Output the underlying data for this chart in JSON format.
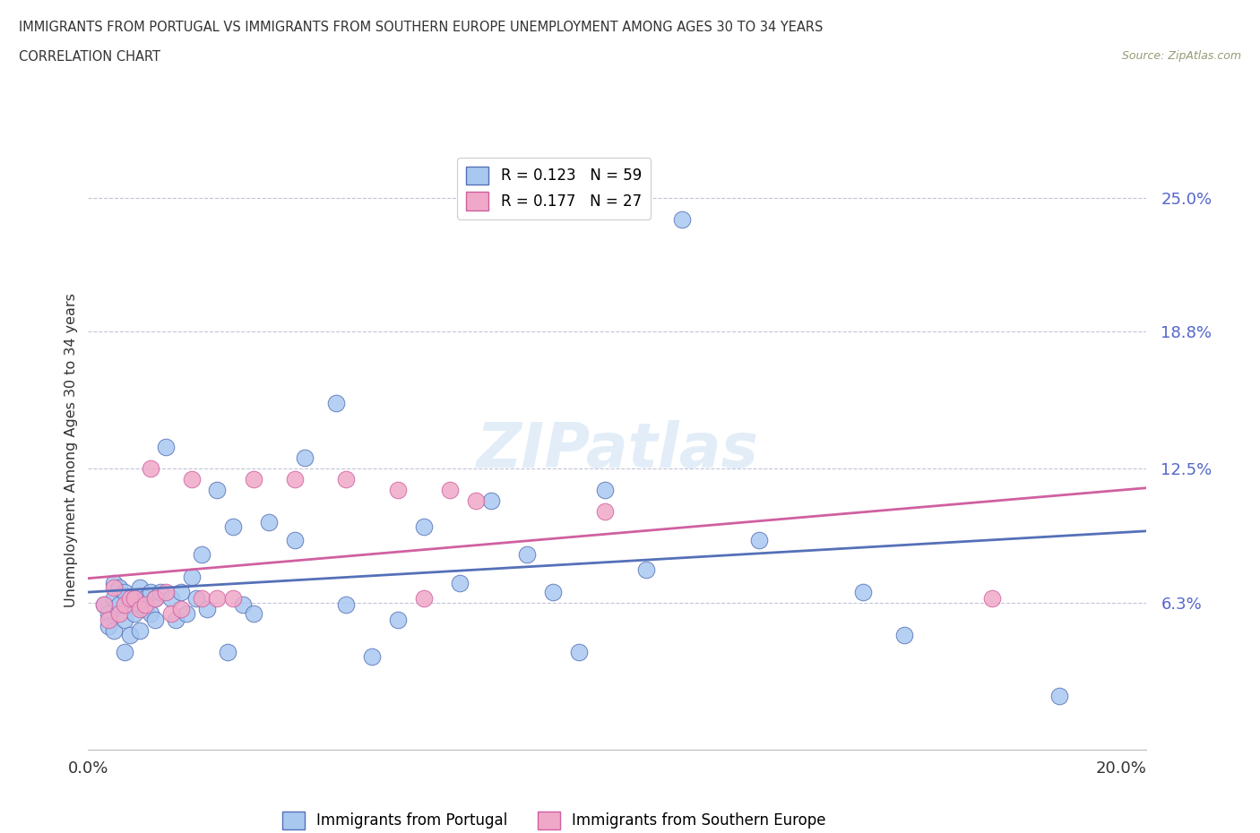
{
  "title_line1": "IMMIGRANTS FROM PORTUGAL VS IMMIGRANTS FROM SOUTHERN EUROPE UNEMPLOYMENT AMONG AGES 30 TO 34 YEARS",
  "title_line2": "CORRELATION CHART",
  "source": "Source: ZipAtlas.com",
  "ylabel": "Unemployment Among Ages 30 to 34 years",
  "xlim": [
    0.0,
    0.205
  ],
  "ylim": [
    -0.005,
    0.272
  ],
  "yticks": [
    0.063,
    0.125,
    0.188,
    0.25
  ],
  "ytick_labels": [
    "6.3%",
    "12.5%",
    "18.8%",
    "25.0%"
  ],
  "xtick_labels": [
    "0.0%",
    "20.0%"
  ],
  "xticks": [
    0.0,
    0.2
  ],
  "color_portugal": "#a8c8f0",
  "color_southern": "#f0a8c8",
  "line_color_portugal": "#5570b8",
  "line_color_southern": "#d060a0",
  "legend_R1": "R = 0.123",
  "legend_N1": "N = 59",
  "legend_R2": "R = 0.177",
  "legend_N2": "N = 27",
  "watermark": "ZIPatlas",
  "portugal_x": [
    0.003,
    0.004,
    0.004,
    0.005,
    0.005,
    0.005,
    0.006,
    0.006,
    0.007,
    0.007,
    0.007,
    0.008,
    0.008,
    0.009,
    0.009,
    0.01,
    0.01,
    0.01,
    0.011,
    0.011,
    0.012,
    0.012,
    0.013,
    0.013,
    0.014,
    0.015,
    0.016,
    0.017,
    0.018,
    0.019,
    0.02,
    0.021,
    0.022,
    0.023,
    0.025,
    0.027,
    0.028,
    0.03,
    0.032,
    0.035,
    0.04,
    0.042,
    0.048,
    0.05,
    0.055,
    0.06,
    0.065,
    0.072,
    0.078,
    0.085,
    0.09,
    0.095,
    0.1,
    0.108,
    0.115,
    0.13,
    0.15,
    0.158,
    0.188
  ],
  "portugal_y": [
    0.062,
    0.058,
    0.052,
    0.072,
    0.065,
    0.05,
    0.07,
    0.062,
    0.068,
    0.055,
    0.04,
    0.062,
    0.048,
    0.065,
    0.058,
    0.07,
    0.062,
    0.05,
    0.065,
    0.06,
    0.068,
    0.058,
    0.065,
    0.055,
    0.068,
    0.135,
    0.065,
    0.055,
    0.068,
    0.058,
    0.075,
    0.065,
    0.085,
    0.06,
    0.115,
    0.04,
    0.098,
    0.062,
    0.058,
    0.1,
    0.092,
    0.13,
    0.155,
    0.062,
    0.038,
    0.055,
    0.098,
    0.072,
    0.11,
    0.085,
    0.068,
    0.04,
    0.115,
    0.078,
    0.24,
    0.092,
    0.068,
    0.048,
    0.02
  ],
  "southern_x": [
    0.003,
    0.004,
    0.005,
    0.006,
    0.007,
    0.008,
    0.009,
    0.01,
    0.011,
    0.012,
    0.013,
    0.015,
    0.016,
    0.018,
    0.02,
    0.022,
    0.025,
    0.028,
    0.032,
    0.04,
    0.05,
    0.06,
    0.065,
    0.07,
    0.075,
    0.1,
    0.175
  ],
  "southern_y": [
    0.062,
    0.055,
    0.07,
    0.058,
    0.062,
    0.065,
    0.065,
    0.06,
    0.062,
    0.125,
    0.065,
    0.068,
    0.058,
    0.06,
    0.12,
    0.065,
    0.065,
    0.065,
    0.12,
    0.12,
    0.12,
    0.115,
    0.065,
    0.115,
    0.11,
    0.105,
    0.065
  ]
}
